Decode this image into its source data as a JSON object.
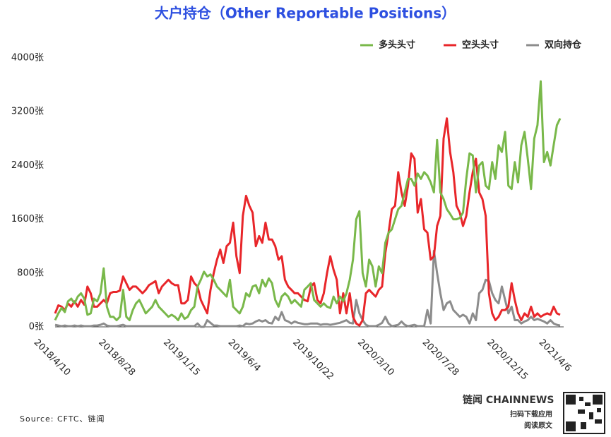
{
  "chart_data": {
    "type": "line",
    "title": "大户持仓（Other Reportable Positions）",
    "source": "Source: CFTC、链闻",
    "brand": "链闻 CHAINNEWS",
    "brand_sub": [
      "扫码下载应用",
      "阅读原文"
    ],
    "categories": [
      "2018/4/10",
      null,
      null,
      null,
      null,
      null,
      null,
      null,
      null,
      null,
      null,
      null,
      null,
      null,
      null,
      null,
      null,
      null,
      null,
      null,
      "2018/8/28",
      null,
      null,
      null,
      null,
      null,
      null,
      null,
      null,
      null,
      null,
      null,
      null,
      null,
      null,
      null,
      null,
      null,
      null,
      null,
      "2019/1/15",
      null,
      null,
      null,
      null,
      null,
      null,
      null,
      null,
      null,
      null,
      null,
      null,
      null,
      null,
      null,
      null,
      null,
      null,
      null,
      "2019/6/4",
      null,
      null,
      null,
      null,
      null,
      null,
      null,
      null,
      null,
      null,
      null,
      null,
      null,
      null,
      null,
      null,
      null,
      null,
      null,
      "2019/10/22",
      null,
      null,
      null,
      null,
      null,
      null,
      null,
      null,
      null,
      null,
      null,
      null,
      null,
      null,
      null,
      null,
      null,
      null,
      null,
      "2020/3/10",
      null,
      null,
      null,
      null,
      null,
      null,
      null,
      null,
      null,
      null,
      null,
      null,
      null,
      null,
      null,
      null,
      null,
      null,
      null,
      "2020/7/28",
      null,
      null,
      null,
      null,
      null,
      null,
      null,
      null,
      null,
      null,
      null,
      null,
      null,
      null,
      null,
      null,
      null,
      null,
      null,
      "2020/12/15",
      null,
      null,
      null,
      null,
      null,
      null,
      null,
      null,
      null,
      null,
      null,
      null,
      null,
      null,
      null,
      "2021/4/6"
    ],
    "series": [
      {
        "name": "多头头寸",
        "color": "#79b84a",
        "values": [
          100,
          200,
          280,
          220,
          380,
          420,
          350,
          450,
          500,
          420,
          180,
          200,
          420,
          380,
          500,
          870,
          300,
          150,
          150,
          100,
          150,
          550,
          150,
          100,
          250,
          350,
          400,
          300,
          200,
          250,
          300,
          400,
          300,
          250,
          200,
          150,
          180,
          150,
          100,
          200,
          120,
          150,
          250,
          300,
          600,
          700,
          820,
          750,
          780,
          700,
          600,
          550,
          500,
          450,
          700,
          300,
          250,
          200,
          300,
          500,
          450,
          600,
          620,
          500,
          700,
          600,
          720,
          650,
          400,
          300,
          450,
          500,
          450,
          350,
          400,
          350,
          300,
          550,
          600,
          650,
          400,
          350,
          300,
          350,
          300,
          280,
          450,
          350,
          450,
          380,
          500,
          700,
          1000,
          1600,
          1720,
          800,
          600,
          1000,
          900,
          600,
          900,
          800,
          1250,
          1400,
          1450,
          1600,
          1750,
          1800,
          2000,
          2200,
          2200,
          2100,
          2280,
          2200,
          2300,
          2250,
          2150,
          2000,
          2780,
          2000,
          1900,
          1750,
          1680,
          1600,
          1600,
          1620,
          1700,
          2200,
          2580,
          2550,
          2000,
          2400,
          2450,
          2100,
          2050,
          2450,
          2200,
          2700,
          2600,
          2900,
          2100,
          2050,
          2450,
          2150,
          2700,
          2900,
          2500,
          2050,
          2800,
          3000,
          3650,
          2450,
          2600,
          2400,
          2700,
          3000,
          3100
        ]
      },
      {
        "name": "空头头寸",
        "color": "#e8262a",
        "values": [
          200,
          320,
          300,
          250,
          350,
          300,
          380,
          300,
          400,
          330,
          600,
          500,
          300,
          300,
          350,
          400,
          350,
          500,
          520,
          520,
          540,
          750,
          650,
          550,
          600,
          600,
          550,
          500,
          550,
          620,
          650,
          680,
          500,
          600,
          650,
          700,
          650,
          620,
          620,
          350,
          350,
          400,
          750,
          650,
          600,
          400,
          300,
          200,
          550,
          800,
          1000,
          1150,
          950,
          1200,
          1250,
          1550,
          1050,
          800,
          1650,
          1950,
          1800,
          1700,
          1200,
          1350,
          1250,
          1550,
          1300,
          1300,
          1200,
          1000,
          1050,
          700,
          600,
          550,
          500,
          500,
          450,
          400,
          380,
          600,
          650,
          400,
          350,
          500,
          800,
          1050,
          850,
          700,
          200,
          500,
          200,
          500,
          150,
          50,
          20,
          100,
          500,
          550,
          500,
          450,
          550,
          600,
          1100,
          1400,
          1750,
          1800,
          2300,
          2000,
          1800,
          2100,
          2580,
          2500,
          1700,
          1900,
          1450,
          1400,
          1000,
          1050,
          1500,
          1650,
          2800,
          3100,
          2600,
          2300,
          1800,
          1700,
          1500,
          1650,
          2000,
          2300,
          2500,
          2000,
          1900,
          1650,
          500,
          200,
          100,
          150,
          250,
          250,
          300,
          650,
          400,
          200,
          100,
          200,
          150,
          300,
          150,
          200,
          150,
          180,
          200,
          180,
          300,
          200,
          180
        ]
      },
      {
        "name": "双向持仓",
        "color": "#8c8c8c",
        "values": [
          30,
          20,
          10,
          20,
          10,
          10,
          20,
          10,
          20,
          10,
          10,
          10,
          20,
          20,
          30,
          50,
          20,
          10,
          10,
          10,
          20,
          30,
          10,
          10,
          10,
          10,
          10,
          10,
          10,
          10,
          10,
          10,
          10,
          10,
          10,
          10,
          10,
          10,
          10,
          10,
          10,
          10,
          10,
          10,
          50,
          0,
          0,
          100,
          60,
          20,
          20,
          10,
          10,
          10,
          10,
          10,
          10,
          20,
          10,
          50,
          40,
          50,
          80,
          100,
          80,
          100,
          60,
          50,
          150,
          100,
          220,
          100,
          80,
          50,
          80,
          60,
          50,
          40,
          40,
          50,
          50,
          50,
          30,
          40,
          40,
          30,
          40,
          50,
          60,
          80,
          100,
          60,
          50,
          400,
          200,
          100,
          30,
          10,
          10,
          10,
          30,
          60,
          150,
          50,
          10,
          20,
          30,
          80,
          30,
          10,
          20,
          30,
          10,
          10,
          10,
          250,
          50,
          1130,
          800,
          500,
          250,
          350,
          380,
          250,
          200,
          150,
          180,
          150,
          50,
          200,
          100,
          500,
          550,
          700,
          680,
          500,
          400,
          350,
          600,
          400,
          200,
          300,
          100,
          100,
          50,
          80,
          100,
          150,
          100,
          120,
          100,
          80,
          50,
          100,
          50,
          30,
          20
        ]
      }
    ],
    "ylim": [
      0,
      4000
    ],
    "yticks": [
      {
        "value": 0,
        "label": "0张"
      },
      {
        "value": 800,
        "label": "800张"
      },
      {
        "value": 1600,
        "label": "1600张"
      },
      {
        "value": 2400,
        "label": "2400张"
      },
      {
        "value": 3200,
        "label": "3200张"
      },
      {
        "value": 4000,
        "label": "4000张"
      }
    ],
    "grid": false,
    "legend": "top-right"
  }
}
